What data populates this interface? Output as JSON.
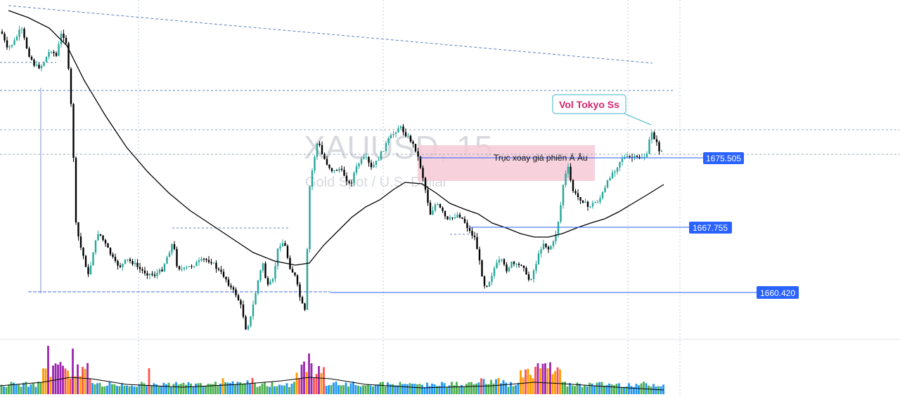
{
  "chart_data": {
    "type": "candlestick",
    "watermark": {
      "symbol": "XAUUSD, 15",
      "description": "Gold Spot / U.S. Dollar"
    },
    "y_range": [
      1649,
      1685
    ],
    "price_levels": [
      {
        "label": "1675.505",
        "value": 1675.505,
        "color": "#2962ff"
      },
      {
        "label": "1667.755",
        "value": 1667.755,
        "color": "#2962ff"
      },
      {
        "label": "1660.420",
        "value": 1660.42,
        "color": "#2962ff"
      }
    ],
    "zone": {
      "label": "Trục xoay giá phiên Á Âu",
      "color": "#f6c9d6"
    },
    "callout": {
      "label": "Vol Tokyo Ss",
      "color": "#d6246e",
      "border": "#39b6c4"
    },
    "colors": {
      "up": "#26a69a",
      "down": "#000000",
      "ma": "#000000",
      "grid": "#b0c4de"
    },
    "volume_colors": [
      "#2196f3",
      "#4caf50",
      "#ff9800",
      "#ff5252",
      "#9c27b0"
    ]
  }
}
